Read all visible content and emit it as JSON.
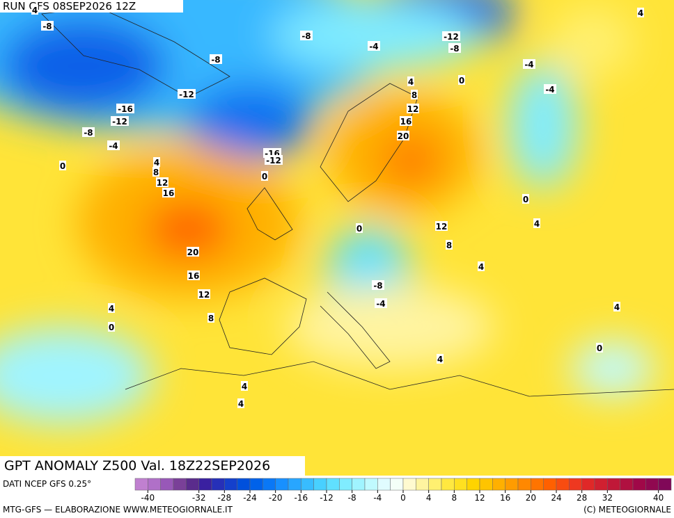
{
  "header": {
    "run": "RUN GFS 08SEP2026 12Z"
  },
  "map": {
    "title": "GPT ANOMALY Z500 Val. 18Z22SEP2026",
    "contour_labels": [
      -8,
      4,
      -8,
      -4,
      -12,
      -8,
      -8,
      -4,
      4,
      0,
      4,
      8,
      -4,
      -12,
      -16,
      -12,
      12,
      -8,
      16,
      -4,
      20,
      -16,
      -12,
      0,
      4,
      8,
      12,
      16,
      0,
      0,
      4,
      12,
      0,
      8,
      20,
      4,
      16,
      -8,
      12,
      -4,
      4,
      4,
      8,
      0,
      0,
      4,
      4,
      4
    ]
  },
  "colorbar": {
    "source": "DATI NCEP GFS 0.25°",
    "colors": [
      "#c080d0",
      "#b070c8",
      "#9858b8",
      "#7a4098",
      "#5a2c8c",
      "#3a20a0",
      "#2630b8",
      "#1440cc",
      "#0050dc",
      "#0062ea",
      "#0a78f6",
      "#1890ff",
      "#28a6ff",
      "#38bcff",
      "#48d0ff",
      "#60e0ff",
      "#80ecff",
      "#a0f4ff",
      "#c0faff",
      "#e0fcff",
      "#f4fff8",
      "#fffad0",
      "#fff4a0",
      "#fff070",
      "#ffe840",
      "#ffe020",
      "#ffd400",
      "#ffc400",
      "#ffb000",
      "#ff9c00",
      "#ff8800",
      "#ff7400",
      "#ff6000",
      "#f84c10",
      "#ee3820",
      "#e02828",
      "#d02030",
      "#c01838",
      "#b01040",
      "#a00848",
      "#900850",
      "#800858"
    ],
    "ticks": [
      -40,
      -32,
      -28,
      -24,
      -20,
      -16,
      -12,
      -8,
      -4,
      0,
      4,
      8,
      12,
      16,
      20,
      24,
      28,
      32,
      40
    ]
  },
  "footer": {
    "left": "MTG-GFS — ELABORAZIONE WWW.METEOGIORNALE.IT",
    "right": "(C) METEOGIORNALE"
  }
}
